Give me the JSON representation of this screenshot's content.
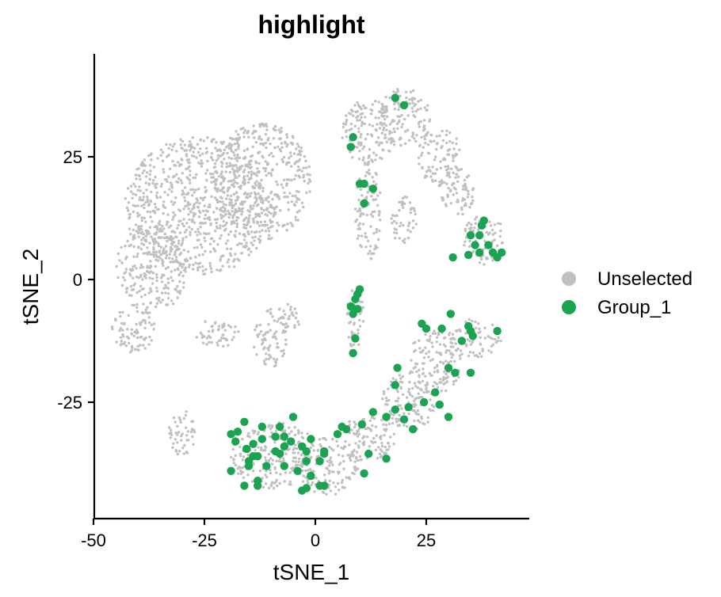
{
  "chart_data": {
    "type": "scatter",
    "title": "highlight",
    "xlabel": "tSNE_1",
    "ylabel": "tSNE_2",
    "xlim": [
      -50,
      48
    ],
    "ylim": [
      -49,
      42
    ],
    "x_ticks": [
      -50,
      -25,
      0,
      25
    ],
    "y_ticks": [
      -25,
      0,
      25
    ],
    "x_tick_labels": [
      "-50",
      "-25",
      "0",
      "25"
    ],
    "y_tick_labels": [
      "-25",
      "0",
      "25"
    ],
    "grid": false,
    "legend_position": "right",
    "legend": [
      {
        "label": "Unselected",
        "color": "#c0c0c0"
      },
      {
        "label": "Group_1",
        "color": "#1aa351"
      }
    ],
    "series": [
      {
        "name": "Unselected",
        "color": "#c0c0c0",
        "approximate_regions": [
          {
            "cx": -26,
            "cy": 15,
            "rx": 17,
            "ry": 14
          },
          {
            "cx": -12,
            "cy": 20,
            "rx": 11,
            "ry": 12
          },
          {
            "cx": -37,
            "cy": 2,
            "rx": 8,
            "ry": 9
          },
          {
            "cx": -41,
            "cy": -10,
            "rx": 5,
            "ry": 5
          },
          {
            "cx": -22,
            "cy": -11,
            "rx": 5,
            "ry": 3
          },
          {
            "cx": -10,
            "cy": -12,
            "rx": 4,
            "ry": 6
          },
          {
            "cx": -6,
            "cy": -8,
            "rx": 3,
            "ry": 3
          },
          {
            "cx": -30,
            "cy": -31,
            "rx": 3,
            "ry": 5
          },
          {
            "cx": 12,
            "cy": 30,
            "rx": 6,
            "ry": 7
          },
          {
            "cx": 20,
            "cy": 33,
            "rx": 6,
            "ry": 6
          },
          {
            "cx": 28,
            "cy": 25,
            "rx": 5,
            "ry": 6
          },
          {
            "cx": 32,
            "cy": 18,
            "rx": 4,
            "ry": 5
          },
          {
            "cx": 38,
            "cy": 8,
            "rx": 5,
            "ry": 5
          },
          {
            "cx": 12,
            "cy": 14,
            "rx": 3,
            "ry": 10
          },
          {
            "cx": 20,
            "cy": 12,
            "rx": 3,
            "ry": 5
          },
          {
            "cx": 9,
            "cy": -8,
            "rx": 2,
            "ry": 7
          },
          {
            "cx": -9,
            "cy": -36,
            "rx": 10,
            "ry": 7
          },
          {
            "cx": 3,
            "cy": -38,
            "rx": 7,
            "ry": 6
          },
          {
            "cx": 12,
            "cy": -32,
            "rx": 6,
            "ry": 5
          },
          {
            "cx": 21,
            "cy": -25,
            "rx": 6,
            "ry": 6
          },
          {
            "cx": 27,
            "cy": -17,
            "rx": 6,
            "ry": 7
          },
          {
            "cx": 36,
            "cy": -12,
            "rx": 6,
            "ry": 4
          }
        ]
      },
      {
        "name": "Group_1",
        "color": "#1aa351",
        "points": [
          [
            18,
            37
          ],
          [
            20,
            35.5
          ],
          [
            8.5,
            29
          ],
          [
            8,
            27
          ],
          [
            10,
            19.5
          ],
          [
            11,
            19.5
          ],
          [
            13,
            18.5
          ],
          [
            11,
            15.5
          ],
          [
            38,
            12
          ],
          [
            37.5,
            11
          ],
          [
            35,
            9
          ],
          [
            37,
            9
          ],
          [
            36,
            7
          ],
          [
            39,
            7
          ],
          [
            34.5,
            5
          ],
          [
            37,
            5.5
          ],
          [
            40,
            5.5
          ],
          [
            31,
            4.5
          ],
          [
            42,
            5.5
          ],
          [
            41,
            4.5
          ],
          [
            10,
            -2
          ],
          [
            9.5,
            -3
          ],
          [
            9,
            -4
          ],
          [
            8,
            -5.5
          ],
          [
            9.5,
            -6
          ],
          [
            8.5,
            -7
          ],
          [
            9,
            -12
          ],
          [
            8.5,
            -15
          ],
          [
            24,
            -9
          ],
          [
            25,
            -10
          ],
          [
            28.5,
            -10
          ],
          [
            30.5,
            -7
          ],
          [
            34.5,
            -9.5
          ],
          [
            35,
            -10.5
          ],
          [
            35.5,
            -11.5
          ],
          [
            33,
            -12.5
          ],
          [
            41,
            -10.5
          ],
          [
            18.5,
            -18
          ],
          [
            30,
            -18
          ],
          [
            31.5,
            -19
          ],
          [
            35,
            -19
          ],
          [
            18,
            -21.5
          ],
          [
            27,
            -23
          ],
          [
            24.5,
            -25
          ],
          [
            28,
            -25.5
          ],
          [
            21,
            -26
          ],
          [
            18,
            -26.5
          ],
          [
            13,
            -27
          ],
          [
            16,
            -28
          ],
          [
            20,
            -28.5
          ],
          [
            10.5,
            -29.5
          ],
          [
            30,
            -28
          ],
          [
            22,
            -30.5
          ],
          [
            -16,
            -29
          ],
          [
            -12,
            -30
          ],
          [
            -8,
            -30
          ],
          [
            -5,
            -28
          ],
          [
            -7,
            -32
          ],
          [
            -9,
            -32
          ],
          [
            -5.5,
            -33
          ],
          [
            -7,
            -34
          ],
          [
            -3,
            -34
          ],
          [
            -1,
            -32.5
          ],
          [
            -14,
            -33.5
          ],
          [
            -12,
            -32.5
          ],
          [
            -19,
            -31.5
          ],
          [
            -17.5,
            -31
          ],
          [
            -18,
            -33
          ],
          [
            -15.5,
            -34.5
          ],
          [
            6,
            -30
          ],
          [
            7,
            -30.5
          ],
          [
            5,
            -31.5
          ],
          [
            -15,
            -37
          ],
          [
            -14,
            -36
          ],
          [
            -13,
            -36
          ],
          [
            -9,
            -35
          ],
          [
            -8,
            -35.5
          ],
          [
            -2,
            -35
          ],
          [
            2,
            -35
          ],
          [
            2,
            -35.5
          ],
          [
            12,
            -35.5
          ],
          [
            16,
            -36.5
          ],
          [
            -15,
            -38
          ],
          [
            -11,
            -38
          ],
          [
            -7,
            -38
          ],
          [
            -2,
            -37
          ],
          [
            1,
            -37
          ],
          [
            -4,
            -39
          ],
          [
            -19,
            -39
          ],
          [
            -13,
            -41
          ],
          [
            -1,
            -40
          ],
          [
            11,
            -39.5
          ],
          [
            -16,
            -42
          ],
          [
            -13,
            -42
          ],
          [
            1,
            -42
          ],
          [
            -3,
            -43
          ],
          [
            -2,
            -42.5
          ],
          [
            2,
            -42
          ]
        ]
      }
    ]
  }
}
